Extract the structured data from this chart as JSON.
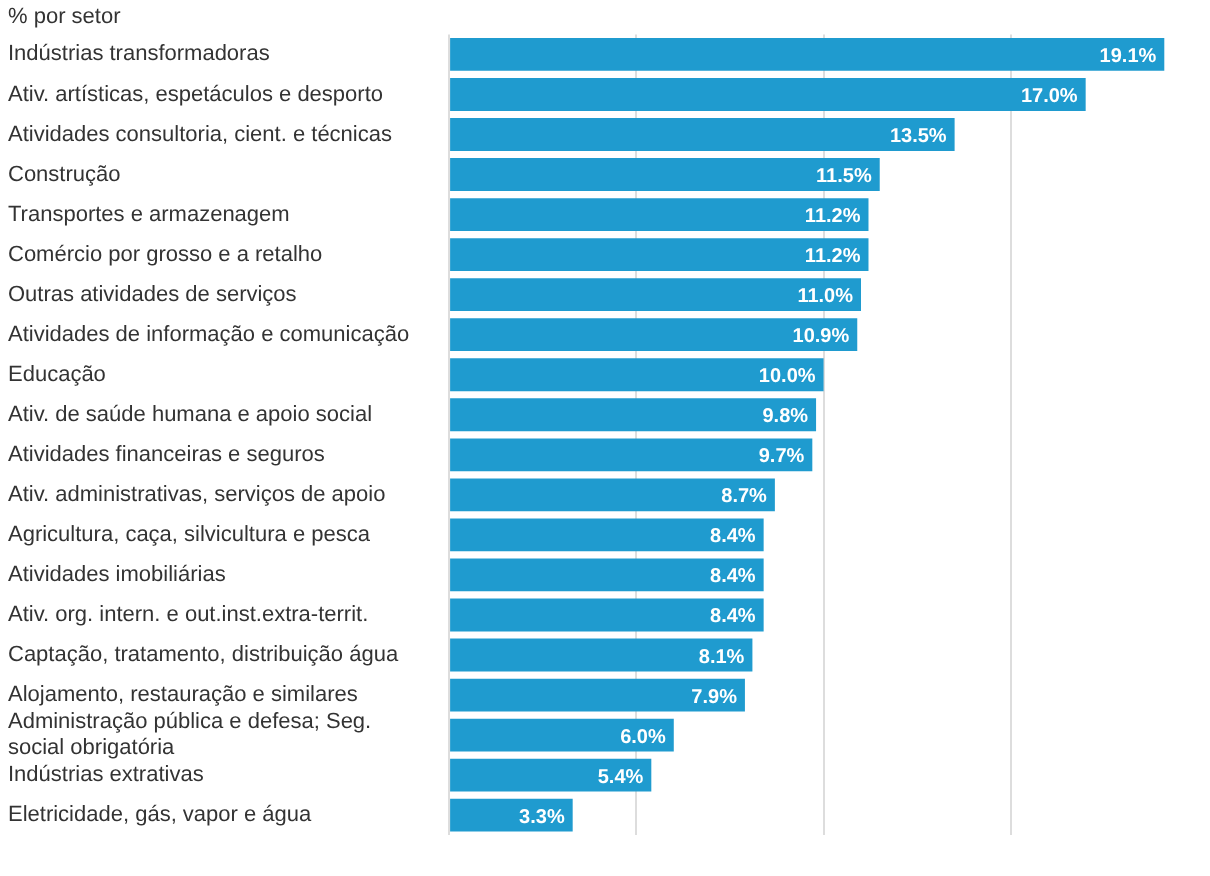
{
  "chart_data": {
    "type": "bar",
    "orientation": "horizontal",
    "title": "% por setor",
    "categories": [
      "Indústrias transformadoras",
      "Ativ. artísticas, espetáculos e desporto",
      "Atividades consultoria, cient. e técnicas",
      "Construção",
      "Transportes e armazenagem",
      "Comércio por grosso e a retalho",
      "Outras atividades de serviços",
      "Atividades de informação e comunicação",
      "Educação",
      "Ativ. de saúde humana e apoio social",
      "Atividades financeiras e seguros",
      "Ativ. administrativas, serviços de apoio",
      "Agricultura, caça, silvicultura e pesca",
      "Atividades imobiliárias",
      "Ativ. org. intern. e out.inst.extra-territ.",
      "Captação, tratamento, distribuição água",
      "Alojamento, restauração e similares",
      "Administração pública e defesa; Seg. social obrigatória",
      "Indústrias extrativas",
      "Eletricidade, gás, vapor e água"
    ],
    "values": [
      19.1,
      17.0,
      13.5,
      11.5,
      11.2,
      11.2,
      11.0,
      10.9,
      10.0,
      9.8,
      9.7,
      8.7,
      8.4,
      8.4,
      8.4,
      8.1,
      7.9,
      6.0,
      5.4,
      3.3
    ],
    "value_labels": [
      "19.1%",
      "17.0%",
      "13.5%",
      "11.5%",
      "11.2%",
      "11.2%",
      "11.0%",
      "10.9%",
      "10.0%",
      "9.8%",
      "9.7%",
      "8.7%",
      "8.4%",
      "8.4%",
      "8.4%",
      "8.1%",
      "7.9%",
      "6.0%",
      "5.4%",
      "3.3%"
    ],
    "color": "#1f9bcf",
    "xticks": [
      {
        "value": 0,
        "label": null
      },
      {
        "value": 5,
        "label": null
      },
      {
        "value": 10,
        "label": null
      },
      {
        "value": 15,
        "label": null
      }
    ],
    "grid": "x",
    "legend": false
  }
}
